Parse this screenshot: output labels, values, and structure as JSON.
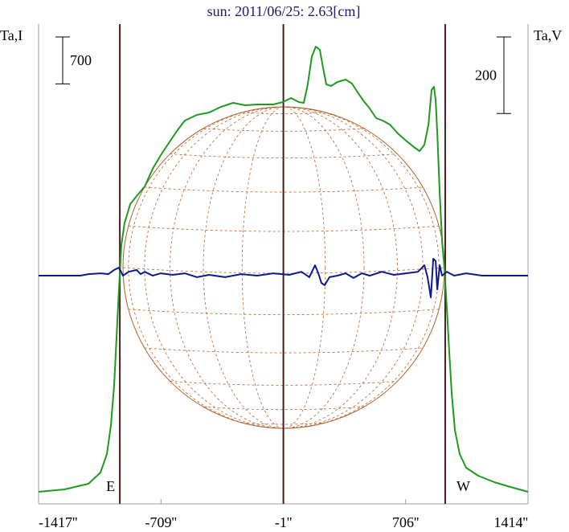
{
  "chart_data": {
    "type": "line",
    "title": "sun: 2011/06/25: 2.63[cm]",
    "y_label": "Ta,I",
    "y2_label": "Ta,V",
    "xlim": [
      -1417,
      1414
    ],
    "xticks": [
      {
        "value": -1417,
        "label": "-1417''"
      },
      {
        "value": -709,
        "label": "-709''"
      },
      {
        "value": -1,
        "label": "-1''"
      },
      {
        "value": 706,
        "label": "706''"
      },
      {
        "value": 1414,
        "label": "1414''"
      }
    ],
    "ylim": [
      0,
      7164
    ],
    "y2lim": [
      -596.4,
      657.3
    ],
    "scale_bars": [
      {
        "axis": "y",
        "value": 700,
        "corner": "left"
      },
      {
        "axis": "y2",
        "value": 200,
        "corner": "right"
      }
    ],
    "vlines": [
      {
        "x": -947,
        "label": "E"
      },
      {
        "x": -1
      },
      {
        "x": 935,
        "label": "W"
      }
    ],
    "series": [
      {
        "name": "Ta,I",
        "color": "#1f9a1f",
        "axis": "y",
        "x": [
          -1417,
          -1268,
          -1129,
          -1059,
          -1022,
          -999,
          -980,
          -966,
          -952,
          -938,
          -920,
          -887,
          -850,
          -803,
          -757,
          -710,
          -664,
          -617,
          -571,
          -501,
          -431,
          -362,
          -292,
          -222,
          -152,
          -60,
          -4,
          43,
          89,
          117,
          140,
          164,
          187,
          210,
          229,
          247,
          275,
          312,
          359,
          396,
          429,
          461,
          498,
          536,
          573,
          615,
          661,
          708,
          754,
          787,
          815,
          838,
          856,
          870,
          880,
          889,
          903,
          917,
          931,
          945,
          959,
          973,
          991,
          1019,
          1056,
          1126,
          1219,
          1312,
          1414
        ],
        "values": [
          180,
          216,
          300,
          468,
          744,
          1164,
          1764,
          2484,
          3204,
          3864,
          4188,
          4476,
          4596,
          4740,
          5004,
          5208,
          5388,
          5568,
          5724,
          5808,
          5844,
          5928,
          5988,
          5952,
          5964,
          5964,
          6000,
          6060,
          6000,
          5988,
          6264,
          6684,
          6828,
          6780,
          6504,
          6264,
          6240,
          6300,
          6336,
          6276,
          6144,
          6024,
          5904,
          5760,
          5724,
          5664,
          5532,
          5424,
          5328,
          5268,
          5364,
          5664,
          6180,
          6228,
          6024,
          5544,
          4644,
          3924,
          3504,
          2904,
          2244,
          1644,
          1104,
          744,
          540,
          420,
          324,
          252,
          180
        ]
      },
      {
        "name": "Ta,V",
        "color": "#0c1a8c",
        "axis": "y2",
        "x": [
          -1417,
          -1175,
          -1129,
          -1059,
          -1013,
          -980,
          -952,
          -929,
          -896,
          -850,
          -827,
          -803,
          -757,
          -710,
          -641,
          -571,
          -501,
          -431,
          -338,
          -245,
          -152,
          -60,
          33,
          103,
          149,
          182,
          201,
          219,
          238,
          266,
          312,
          359,
          405,
          452,
          498,
          568,
          638,
          708,
          777,
          815,
          833,
          852,
          866,
          880,
          889,
          903,
          917,
          945,
          987,
          1056,
          1149,
          1414
        ],
        "values": [
          0,
          0,
          4,
          6,
          4,
          15,
          21,
          0,
          10,
          15,
          4,
          10,
          0,
          6,
          2,
          6,
          -4,
          2,
          -4,
          4,
          0,
          6,
          2,
          10,
          -4,
          27,
          6,
          -19,
          -25,
          -4,
          0,
          6,
          -6,
          6,
          0,
          10,
          2,
          6,
          10,
          27,
          -4,
          -57,
          44,
          38,
          -36,
          27,
          0,
          10,
          0,
          6,
          0,
          0
        ]
      }
    ]
  }
}
